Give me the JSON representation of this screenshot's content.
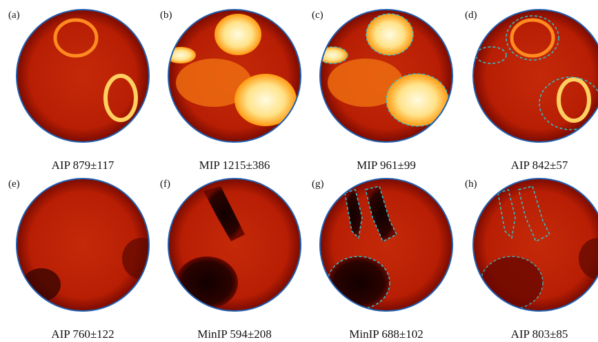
{
  "panels": [
    {
      "letter": "(a)",
      "caption": "AIP 879±117"
    },
    {
      "letter": "(b)",
      "caption": "MIP 1215±386"
    },
    {
      "letter": "(c)",
      "caption": "MIP 961±99"
    },
    {
      "letter": "(d)",
      "caption": "AIP 842±57"
    },
    {
      "letter": "(e)",
      "caption": "AIP 760±122"
    },
    {
      "letter": "(f)",
      "caption": "MinIP 594±208"
    },
    {
      "letter": "(g)",
      "caption": "MinIP 688±102"
    },
    {
      "letter": "(h)",
      "caption": "AIP 803±85"
    }
  ]
}
